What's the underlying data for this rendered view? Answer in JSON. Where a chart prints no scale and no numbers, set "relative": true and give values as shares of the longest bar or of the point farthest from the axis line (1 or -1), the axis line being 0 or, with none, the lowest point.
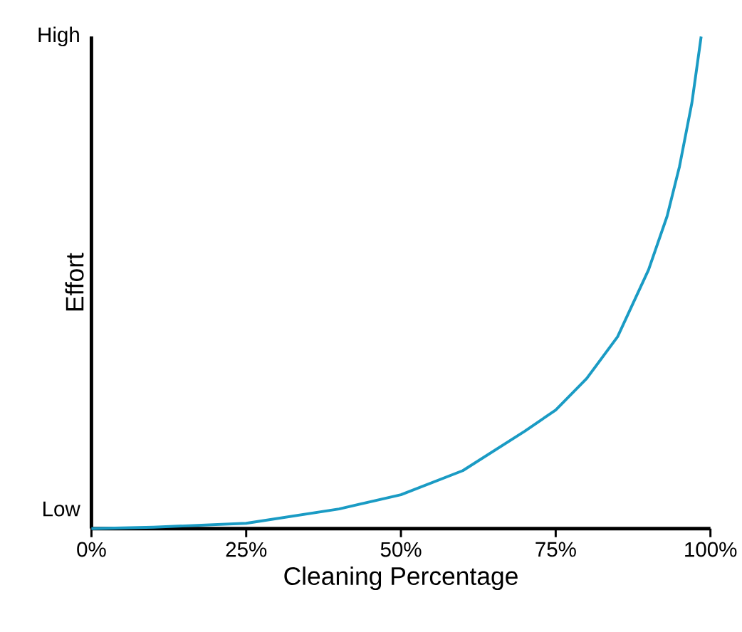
{
  "chart_data": {
    "type": "line",
    "relative": true,
    "xlabel": "Cleaning Percentage",
    "ylabel": "Effort",
    "annotations": [
      "Low",
      "High"
    ],
    "xlim": [
      0,
      100
    ],
    "xticks": [
      {
        "value": 0,
        "label": "0%"
      },
      {
        "value": 25,
        "label": "25%"
      },
      {
        "value": 50,
        "label": "50%"
      },
      {
        "value": 75,
        "label": "75%"
      },
      {
        "value": 100,
        "label": "100%"
      }
    ],
    "series": [
      {
        "color": "#1a9bc4",
        "x": [
          0,
          10,
          25,
          40,
          50,
          60,
          70,
          75,
          80,
          85,
          90,
          93,
          95,
          97,
          98.5
        ],
        "values": [
          0,
          0.003,
          0.011,
          0.04,
          0.069,
          0.118,
          0.198,
          0.241,
          0.305,
          0.39,
          0.526,
          0.635,
          0.736,
          0.865,
          1
        ]
      }
    ],
    "marker": "none",
    "line_style": "solid",
    "grid": false
  }
}
